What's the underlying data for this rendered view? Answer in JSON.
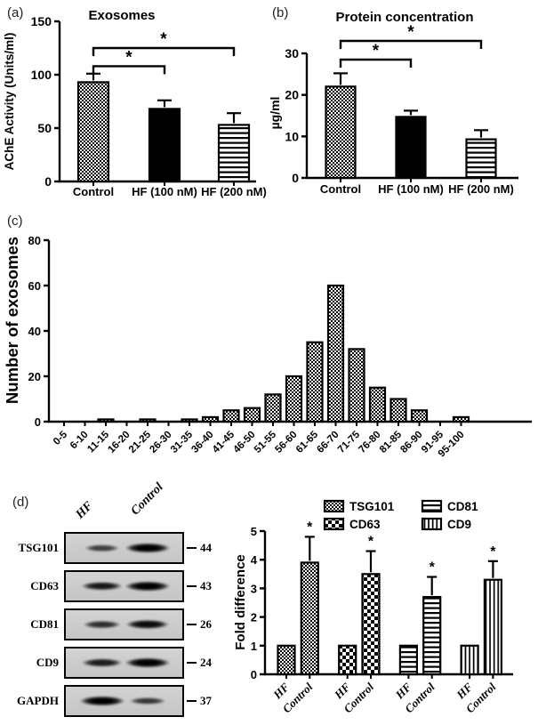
{
  "colors": {
    "ink": "#000000",
    "background": "#ffffff",
    "blot_membrane": "#cccccc"
  },
  "panels": {
    "a": {
      "tag": "(a)"
    },
    "b": {
      "tag": "(b)"
    },
    "c": {
      "tag": "(c)"
    },
    "d": {
      "tag": "(d)"
    }
  },
  "chart_data": [
    {
      "id": "a",
      "type": "bar",
      "title": "Exosomes",
      "ylabel": "AChE Activity (Units/ml)",
      "xlabel": "",
      "categories": [
        "Control",
        "HF (100 nM)",
        "HF (200 nM)"
      ],
      "values": [
        93,
        68,
        53
      ],
      "errors": [
        8,
        8,
        11
      ],
      "patterns": [
        "dots",
        "solid",
        "hlines"
      ],
      "ylim": [
        0,
        150
      ],
      "yticks": [
        0,
        50,
        100,
        150
      ],
      "grid": "off",
      "significance": [
        {
          "from": 0,
          "to": 1,
          "height": 108,
          "label": "*"
        },
        {
          "from": 0,
          "to": 2,
          "height": 125,
          "label": "*"
        }
      ]
    },
    {
      "id": "b",
      "type": "bar",
      "title": "Protein concentration",
      "ylabel": "µg/ml",
      "xlabel": "",
      "categories": [
        "Control",
        "HF (100 nM)",
        "HF (200 nM)"
      ],
      "values": [
        22,
        14.7,
        9.3
      ],
      "errors": [
        3.2,
        1.5,
        2.2
      ],
      "patterns": [
        "dots",
        "solid",
        "hlines"
      ],
      "ylim": [
        0,
        30
      ],
      "yticks": [
        0,
        10,
        20,
        30
      ],
      "grid": "off",
      "significance": [
        {
          "from": 0,
          "to": 1,
          "height": 28.5,
          "label": "*"
        },
        {
          "from": 0,
          "to": 2,
          "height": 33,
          "label": "*"
        }
      ]
    },
    {
      "id": "c",
      "type": "bar",
      "title": "",
      "ylabel": "Number of exosomes",
      "xlabel": "",
      "categories": [
        "0-5",
        "6-10",
        "11-15",
        "16-20",
        "21-25",
        "26-30",
        "31-35",
        "36-40",
        "41-45",
        "46-50",
        "51-55",
        "56-60",
        "61-65",
        "66-70",
        "71-75",
        "76-80",
        "81-85",
        "86-90",
        "91-95",
        "95-100"
      ],
      "values": [
        0,
        0,
        1,
        0,
        1,
        0,
        1,
        2,
        5,
        6,
        12,
        20,
        35,
        60,
        32,
        15,
        10,
        5,
        0,
        2
      ],
      "pattern": "dots",
      "ylim": [
        0,
        80
      ],
      "yticks": [
        0,
        20,
        40,
        60,
        80
      ],
      "grid": "off"
    },
    {
      "id": "d",
      "type": "bar",
      "title": "",
      "ylabel": "Fold difference",
      "xlabel": "",
      "ylim": [
        0,
        5
      ],
      "yticks": [
        0,
        1,
        2,
        3,
        4,
        5
      ],
      "grid": "off",
      "legend_position": "top",
      "legend": [
        {
          "label": "TSG101",
          "pattern": "dots"
        },
        {
          "label": "CD63",
          "pattern": "checker"
        },
        {
          "label": "CD81",
          "pattern": "hlines"
        },
        {
          "label": "CD9",
          "pattern": "vlines"
        }
      ],
      "groups": [
        {
          "name": "TSG101",
          "pattern": "dots",
          "bars": [
            {
              "label": "HF",
              "value": 1
            },
            {
              "label": "Control",
              "value": 3.9,
              "error": 0.9,
              "sig": "*"
            }
          ]
        },
        {
          "name": "CD63",
          "pattern": "checker",
          "bars": [
            {
              "label": "HF",
              "value": 1
            },
            {
              "label": "Control",
              "value": 3.5,
              "error": 0.8,
              "sig": "*"
            }
          ]
        },
        {
          "name": "CD81",
          "pattern": "hlines",
          "bars": [
            {
              "label": "HF",
              "value": 1
            },
            {
              "label": "Control",
              "value": 2.7,
              "error": 0.7,
              "sig": "*"
            }
          ]
        },
        {
          "name": "CD9",
          "pattern": "vlines",
          "bars": [
            {
              "label": "HF",
              "value": 1
            },
            {
              "label": "Control",
              "value": 3.3,
              "error": 0.65,
              "sig": "*"
            }
          ]
        }
      ]
    }
  ],
  "western_blot": {
    "lanes": [
      "HF",
      "Control"
    ],
    "rows": [
      {
        "protein": "TSG101",
        "mw": "44",
        "band_intensity": {
          "HF": 0.45,
          "Control": 1.0
        }
      },
      {
        "protein": "CD63",
        "mw": "43",
        "band_intensity": {
          "HF": 0.8,
          "Control": 1.0
        }
      },
      {
        "protein": "CD81",
        "mw": "26",
        "band_intensity": {
          "HF": 0.6,
          "Control": 0.9
        }
      },
      {
        "protein": "CD9",
        "mw": "24",
        "band_intensity": {
          "HF": 0.75,
          "Control": 1.0
        }
      },
      {
        "protein": "GAPDH",
        "mw": "37",
        "band_intensity": {
          "HF": 1.0,
          "Control": 0.5
        }
      }
    ]
  }
}
